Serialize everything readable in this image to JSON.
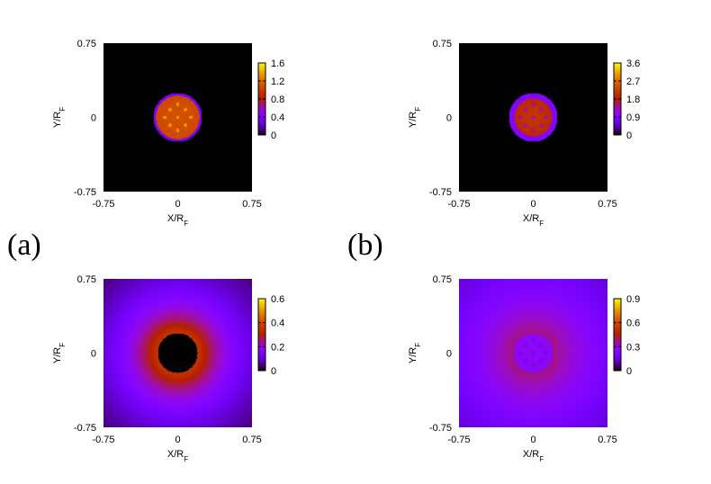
{
  "figure_labels": [
    "(a)",
    "(b)"
  ],
  "chart_data": [
    {
      "type": "heatmap",
      "panel": "a-top",
      "xlabel": "X/R_F",
      "ylabel": "Y/R_F",
      "xlim": [
        -0.75,
        0.75
      ],
      "ylim": [
        -0.75,
        0.75
      ],
      "xticks": [
        "-0.75",
        "0",
        "0.75"
      ],
      "yticks": [
        "0.75",
        "0",
        "-0.75"
      ],
      "colorbar": {
        "ticks": [
          "1.6",
          "1.2",
          "0.8",
          "0.4",
          "0"
        ],
        "min": 0,
        "max": 1.6
      },
      "pattern": "filled disk radius 0.24 R_F, value about 1.1 with bright dots (~1.3), thin purple rim",
      "grid": false
    },
    {
      "type": "heatmap",
      "panel": "b-top",
      "xlabel": "X/R_F",
      "ylabel": "Y/R_F",
      "xlim": [
        -0.75,
        0.75
      ],
      "ylim": [
        -0.75,
        0.75
      ],
      "xticks": [
        "-0.75",
        "0",
        "0.75"
      ],
      "yticks": [
        "0.75",
        "0",
        "-0.75"
      ],
      "colorbar": {
        "ticks": [
          "3.6",
          "2.7",
          "1.8",
          "0.9",
          "0"
        ],
        "min": 0,
        "max": 3.6
      },
      "pattern": "filled disk radius 0.24 R_F, core value about 2.0 with dark dots, purple rim about 0.9",
      "grid": false
    },
    {
      "type": "heatmap",
      "panel": "a-bottom",
      "xlabel": "X/R_F",
      "ylabel": "Y/R_F",
      "xlim": [
        -0.75,
        0.75
      ],
      "ylim": [
        -0.75,
        0.75
      ],
      "xticks": [
        "-0.75",
        "0",
        "0.75"
      ],
      "yticks": [
        "0.75",
        "0",
        "-0.75"
      ],
      "colorbar": {
        "ticks": [
          "0.6",
          "0.4",
          "0.2",
          "0"
        ],
        "min": 0,
        "max": 0.6
      },
      "pattern": "annulus: zero inside radius 0.2 R_F, peak about 0.33 near r = 0.25 R_F, decaying to about 0.1 at corners",
      "grid": false
    },
    {
      "type": "heatmap",
      "panel": "b-bottom",
      "xlabel": "X/R_F",
      "ylabel": "Y/R_F",
      "xlim": [
        -0.75,
        0.75
      ],
      "ylim": [
        -0.75,
        0.75
      ],
      "xticks": [
        "-0.75",
        "0",
        "0.75"
      ],
      "yticks": [
        "0.75",
        "0",
        "-0.75"
      ],
      "colorbar": {
        "ticks": [
          "0.9",
          "0.6",
          "0.3",
          "0"
        ],
        "min": 0,
        "max": 0.9
      },
      "pattern": "broad halo: about 0.25 inside disk, ring about 0.33 near r = 0.3 R_F, decaying to about 0.15 at corners",
      "grid": false
    }
  ]
}
